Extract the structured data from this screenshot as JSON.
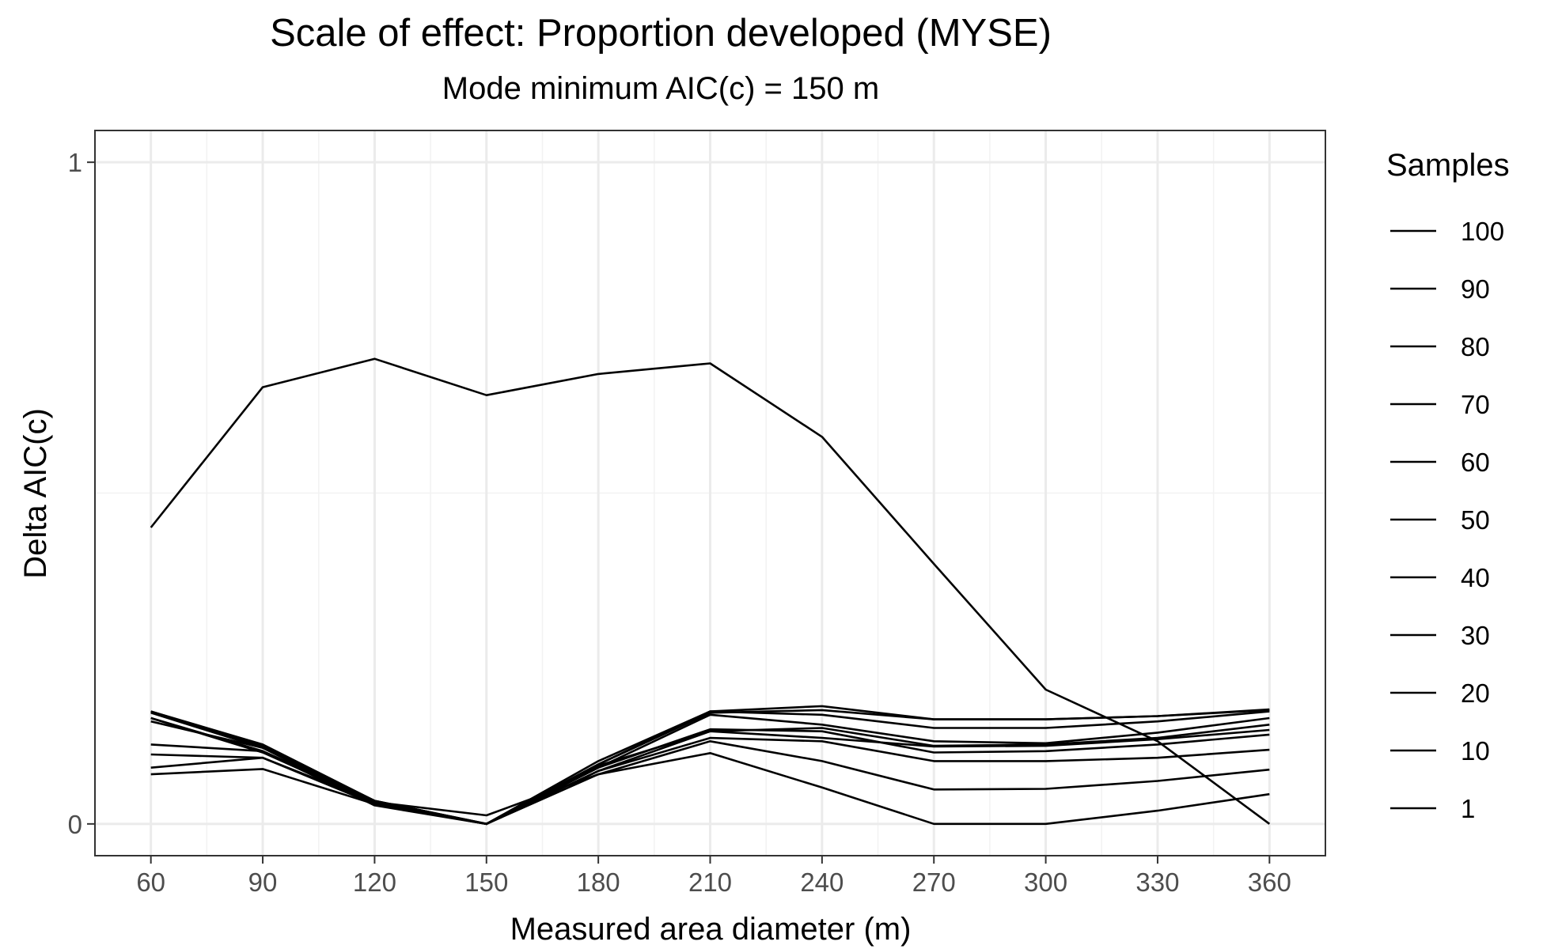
{
  "chart_data": {
    "type": "line",
    "title": "Scale of effect: Proportion developed (MYSE)",
    "subtitle": "Mode minimum AIC(c) = 150 m",
    "xlabel": "Measured area diameter (m)",
    "ylabel": "Delta AIC(c)",
    "x": [
      60,
      90,
      120,
      150,
      180,
      210,
      240,
      270,
      300,
      330,
      360
    ],
    "xlim": [
      45,
      375
    ],
    "ylim": [
      -0.048,
      1.048
    ],
    "yticks": [
      0,
      1
    ],
    "grid": true,
    "legend": {
      "title": "Samples",
      "position": "right"
    },
    "series": [
      {
        "name": "100",
        "values": [
          0.17,
          0.12,
          0.035,
          0.0,
          0.09,
          0.17,
          0.178,
          0.158,
          0.158,
          0.163,
          0.173
        ]
      },
      {
        "name": "90",
        "values": [
          0.155,
          0.115,
          0.03,
          0.0,
          0.095,
          0.17,
          0.165,
          0.145,
          0.145,
          0.155,
          0.17
        ]
      },
      {
        "name": "80",
        "values": [
          0.16,
          0.11,
          0.035,
          0.0,
          0.085,
          0.165,
          0.15,
          0.125,
          0.122,
          0.138,
          0.16
        ]
      },
      {
        "name": "70",
        "values": [
          0.168,
          0.115,
          0.033,
          0.0,
          0.08,
          0.14,
          0.145,
          0.118,
          0.12,
          0.13,
          0.15
        ]
      },
      {
        "name": "60",
        "values": [
          0.16,
          0.108,
          0.032,
          0.0,
          0.088,
          0.14,
          0.13,
          0.117,
          0.118,
          0.128,
          0.142
        ]
      },
      {
        "name": "50",
        "values": [
          0.12,
          0.11,
          0.028,
          0.0,
          0.085,
          0.143,
          0.14,
          0.108,
          0.11,
          0.12,
          0.135
        ]
      },
      {
        "name": "40",
        "values": [
          0.105,
          0.1,
          0.03,
          0.0,
          0.08,
          0.13,
          0.125,
          0.095,
          0.095,
          0.1,
          0.112
        ]
      },
      {
        "name": "30",
        "values": [
          0.085,
          0.1,
          0.033,
          0.013,
          0.075,
          0.125,
          0.095,
          0.052,
          0.053,
          0.065,
          0.082
        ]
      },
      {
        "name": "20",
        "values": [
          0.075,
          0.083,
          0.03,
          0.0,
          0.075,
          0.107,
          0.055,
          0.0,
          0.0,
          0.02,
          0.045
        ]
      },
      {
        "name": "10",
        "values": [
          0.17,
          0.118,
          0.035,
          0.0,
          0.09,
          0.168,
          0.172,
          0.158,
          0.158,
          0.163,
          0.172
        ]
      },
      {
        "name": "1",
        "values": [
          0.448,
          0.66,
          0.703,
          0.648,
          0.68,
          0.696,
          0.585,
          0.393,
          0.203,
          0.125,
          0.0
        ]
      }
    ]
  }
}
